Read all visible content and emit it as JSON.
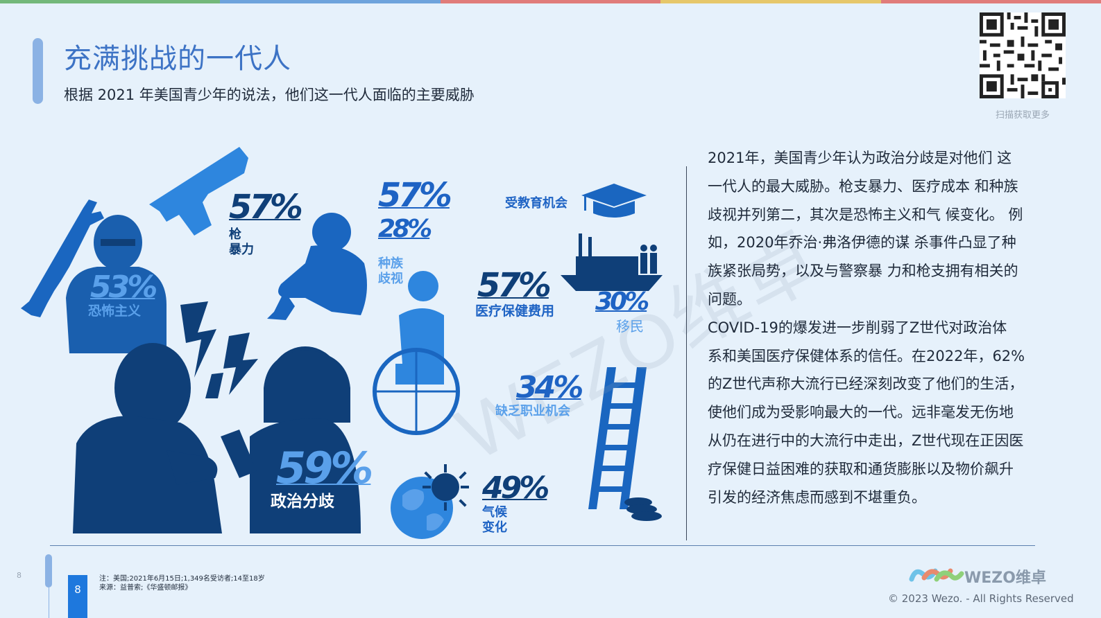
{
  "colors": {
    "topbar": [
      "#73b87a",
      "#6ea3dc",
      "#e07c7a",
      "#e6c76a",
      "#e07c7a"
    ],
    "navy": "#0f3f78",
    "mid_blue": "#1a66c0",
    "bright_blue": "#2e86de",
    "light_blue": "#5aa0ea",
    "label_blue": "#1e63c4"
  },
  "header": {
    "title": "充满挑战的一代人",
    "subtitle": "根据 2021 年美国青少年的说法，他们这一代人面临的主要威胁",
    "qr_caption": "扫描获取更多"
  },
  "stats": [
    {
      "key": "gun",
      "value": "57%",
      "label1": "枪",
      "label2": "暴力"
    },
    {
      "key": "race_a",
      "value": "57%"
    },
    {
      "key": "race_b",
      "value": "28%",
      "label1": "种族",
      "label2": "歧视"
    },
    {
      "key": "terror",
      "value": "53%",
      "label1": "恐怖主义"
    },
    {
      "key": "health",
      "value": "57%",
      "label1": "医疗保健费用"
    },
    {
      "key": "immigration",
      "value": "30%",
      "label1": "移民"
    },
    {
      "key": "jobs",
      "value": "34%",
      "label1": "缺乏职业机会"
    },
    {
      "key": "politics",
      "value": "59%",
      "label1": "政治分歧"
    },
    {
      "key": "climate",
      "value": "49%",
      "label1": "气候",
      "label2": "变化"
    }
  ],
  "education_label": "受教育机会",
  "watermark": "WEZO维卓",
  "body_paragraphs": [
    "2021年，美国青少年认为政治分歧是对他们 这一代人的最大威胁。枪支暴力、医疗成本 和种族歧视并列第二，其次是恐怖主义和气 候变化。 例如，2020年乔治·弗洛伊德的谋 杀事件凸显了种族紧张局势，以及与警察暴 力和枪支拥有相关的问题。",
    "COVID-19的爆发进一步削弱了Z世代对政治体 系和美国医疗保健体系的信任。在2022年，62%的Z世代声称大流行已经深刻改变了他们的生活，使他们成为受影响最大的一代。远非毫发无伤地从仍在进行中的大流行中走出，Z世代现在正因医疗保健日益困难的获取和通货膨胀以及物价飙升引发的经济焦虑而感到不堪重负。"
  ],
  "footer": {
    "page_small": "8",
    "page_number": "8",
    "note_line1": "注：美国;2021年6月15日;1,349名受访者;14至18岁",
    "note_line2": "来源：益普索;《华盛顿邮报》",
    "logo_text": "WEZO维卓",
    "copyright": "© 2023 Wezo. - All Rights Reserved"
  }
}
